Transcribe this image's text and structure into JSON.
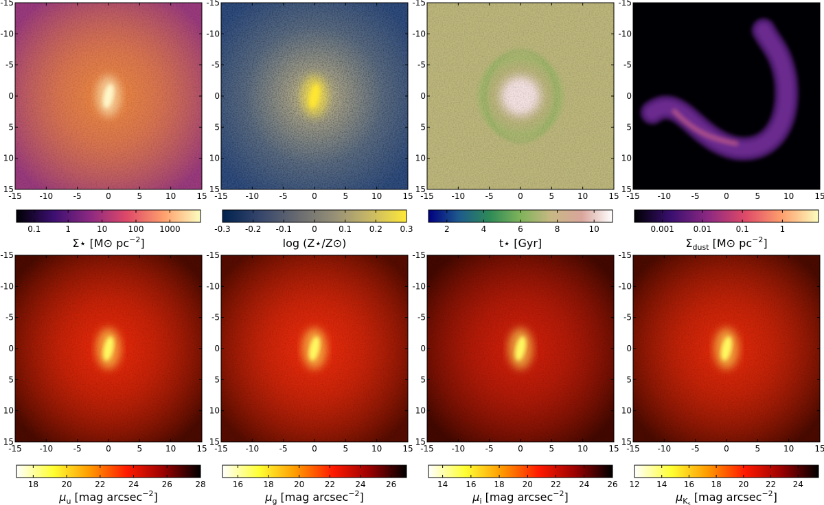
{
  "chart_data": [
    {
      "type": "heatmap",
      "panel": "stellar-surface-density",
      "x_ticks": [
        "-15",
        "-10",
        "-5",
        "0",
        "5",
        "10",
        "15"
      ],
      "y_ticks": [
        "-15",
        "-10",
        "-5",
        "0",
        "5",
        "10",
        "15"
      ],
      "xlim": [
        -15,
        15
      ],
      "ylim": [
        -15,
        15
      ],
      "y_inverted": true,
      "colormap": "inferno",
      "colors": [
        "#000004",
        "#3b0f70",
        "#8c2981",
        "#de4968",
        "#fe9f6d",
        "#fcfdbf"
      ],
      "colorbar": {
        "scale": "log",
        "min": 0.03,
        "max": 8000,
        "tick_values": [
          0.1,
          1,
          10,
          100,
          1000
        ],
        "tick_labels": [
          "0.1",
          "1",
          "10",
          "100",
          "1000"
        ]
      },
      "label": {
        "main": "Σ⋆ [M⊙ pc",
        "sup": "−2",
        "tail": "]"
      },
      "image": {
        "style": "core",
        "edge": "#9a3a7d",
        "mid": "#f08a3e",
        "center": "#fff6c8",
        "core_elongated": true
      }
    },
    {
      "type": "heatmap",
      "panel": "stellar-metallicity",
      "x_ticks": [
        "-15",
        "-10",
        "-5",
        "0",
        "5",
        "10",
        "15"
      ],
      "y_ticks": [
        "-15",
        "-10",
        "-5",
        "0",
        "5",
        "10",
        "15"
      ],
      "xlim": [
        -15,
        15
      ],
      "ylim": [
        -15,
        15
      ],
      "y_inverted": true,
      "colormap": "cividis",
      "colors": [
        "#00224e",
        "#35456c",
        "#666970",
        "#948e77",
        "#c8b866",
        "#fee838"
      ],
      "colorbar": {
        "scale": "linear",
        "min": -0.3,
        "max": 0.3,
        "tick_values": [
          -0.3,
          -0.2,
          -0.1,
          0,
          0.1,
          0.2,
          0.3
        ],
        "tick_labels": [
          "-0.3",
          "-0.2",
          "-0.1",
          "0",
          "0.1",
          "0.2",
          "0.3"
        ]
      },
      "label": {
        "main": "log (Z⋆/Z⊙)",
        "sup": "",
        "tail": ""
      },
      "image": {
        "style": "noisy",
        "edge": "#2f4d80",
        "mid": "#9c9a88",
        "center": "#ffe630",
        "core_elongated": true
      }
    },
    {
      "type": "heatmap",
      "panel": "stellar-age",
      "x_ticks": [
        "-15",
        "-10",
        "-5",
        "0",
        "5",
        "10",
        "15"
      ],
      "y_ticks": [
        "-15",
        "-10",
        "-5",
        "0",
        "5",
        "10",
        "15"
      ],
      "xlim": [
        -15,
        15
      ],
      "ylim": [
        -15,
        15
      ],
      "y_inverted": true,
      "colormap": "gist_earth",
      "colors": [
        "#000080",
        "#1e5a8c",
        "#2e8b57",
        "#7fb35a",
        "#c8b884",
        "#d9a59c",
        "#ffffff"
      ],
      "colorbar": {
        "scale": "linear",
        "min": 1,
        "max": 11,
        "tick_values": [
          2,
          4,
          6,
          8,
          10
        ],
        "tick_labels": [
          "2",
          "4",
          "6",
          "8",
          "10"
        ]
      },
      "label": {
        "main": "t⋆ [Gyr]",
        "sup": "",
        "tail": ""
      },
      "image": {
        "style": "age",
        "edge": "#bdb77c",
        "mid": "#a8b870",
        "center": "#f4e2e2",
        "core_elongated": false
      }
    },
    {
      "type": "heatmap",
      "panel": "dust-surface-density",
      "x_ticks": [
        "-15",
        "-10",
        "-5",
        "0",
        "5",
        "10",
        "15"
      ],
      "y_ticks": [
        "-15",
        "-10",
        "-5",
        "0",
        "5",
        "10",
        "15"
      ],
      "xlim": [
        -15,
        15
      ],
      "ylim": [
        -15,
        15
      ],
      "y_inverted": true,
      "colormap": "inferno",
      "colors": [
        "#000004",
        "#3b0f70",
        "#8c2981",
        "#de4968",
        "#fe9f6d",
        "#fcfdbf"
      ],
      "colorbar": {
        "scale": "log",
        "min": 0.0002,
        "max": 8,
        "tick_values": [
          0.001,
          0.01,
          0.1,
          1
        ],
        "tick_labels": [
          "0.001",
          "0.01",
          "0.1",
          "1"
        ]
      },
      "label": {
        "main": "Σ",
        "sub": "dust",
        "after_sub": " [M⊙ pc",
        "sup": "−2",
        "tail": "]"
      },
      "image": {
        "style": "dust",
        "edge": "#000004",
        "mid": "#6a2a8e",
        "center": "#c05a8a",
        "core_elongated": false
      }
    },
    {
      "type": "heatmap",
      "panel": "surface-brightness-u",
      "x_ticks": [
        "-15",
        "-10",
        "-5",
        "0",
        "5",
        "10",
        "15"
      ],
      "y_ticks": [
        "-15",
        "-10",
        "-5",
        "0",
        "5",
        "10",
        "15"
      ],
      "xlim": [
        -15,
        15
      ],
      "ylim": [
        -15,
        15
      ],
      "y_inverted": true,
      "colormap": "hot_r",
      "colors": [
        "#ffffff",
        "#ffff33",
        "#ff9900",
        "#ff1a00",
        "#990000",
        "#000000"
      ],
      "colorbar": {
        "scale": "linear",
        "min": 17,
        "max": 28,
        "tick_values": [
          18,
          20,
          22,
          24,
          26,
          28
        ],
        "tick_labels": [
          "18",
          "20",
          "22",
          "24",
          "26",
          "28"
        ]
      },
      "label": {
        "main": "μ",
        "sub": "u",
        "after_sub": " [mag arcsec",
        "sup": "−2",
        "tail": "]"
      },
      "image": {
        "style": "core",
        "edge": "#4a0a00",
        "mid": "#f02a0a",
        "center": "#fff860",
        "core_elongated": true
      }
    },
    {
      "type": "heatmap",
      "panel": "surface-brightness-g",
      "x_ticks": [
        "-15",
        "-10",
        "-5",
        "0",
        "5",
        "10",
        "15"
      ],
      "y_ticks": [
        "-15",
        "-10",
        "-5",
        "0",
        "5",
        "10",
        "15"
      ],
      "xlim": [
        -15,
        15
      ],
      "ylim": [
        -15,
        15
      ],
      "y_inverted": true,
      "colormap": "hot_r",
      "colors": [
        "#ffffff",
        "#ffff33",
        "#ff9900",
        "#ff1a00",
        "#990000",
        "#000000"
      ],
      "colorbar": {
        "scale": "linear",
        "min": 15,
        "max": 27,
        "tick_values": [
          16,
          18,
          20,
          22,
          24,
          26
        ],
        "tick_labels": [
          "16",
          "18",
          "20",
          "22",
          "24",
          "26"
        ]
      },
      "label": {
        "main": "μ",
        "sub": "g",
        "after_sub": " [mag arcsec",
        "sup": "−2",
        "tail": "]"
      },
      "image": {
        "style": "core",
        "edge": "#560c00",
        "mid": "#f22c0c",
        "center": "#fff860",
        "core_elongated": true
      }
    },
    {
      "type": "heatmap",
      "panel": "surface-brightness-i",
      "x_ticks": [
        "-15",
        "-10",
        "-5",
        "0",
        "5",
        "10",
        "15"
      ],
      "y_ticks": [
        "-15",
        "-10",
        "-5",
        "0",
        "5",
        "10",
        "15"
      ],
      "xlim": [
        -15,
        15
      ],
      "ylim": [
        -15,
        15
      ],
      "y_inverted": true,
      "colormap": "hot_r",
      "colors": [
        "#ffffff",
        "#ffff33",
        "#ff9900",
        "#ff1a00",
        "#990000",
        "#000000"
      ],
      "colorbar": {
        "scale": "linear",
        "min": 13,
        "max": 26,
        "tick_values": [
          14,
          16,
          18,
          20,
          22,
          24,
          26
        ],
        "tick_labels": [
          "14",
          "16",
          "18",
          "20",
          "22",
          "24",
          "26"
        ]
      },
      "label": {
        "main": "μ",
        "sub": "i",
        "after_sub": " [mag arcsec",
        "sup": "−2",
        "tail": "]"
      },
      "image": {
        "style": "core",
        "edge": "#420800",
        "mid": "#d8200a",
        "center": "#fff860",
        "core_elongated": true
      }
    },
    {
      "type": "heatmap",
      "panel": "surface-brightness-ks",
      "x_ticks": [
        "-15",
        "-10",
        "-5",
        "0",
        "5",
        "10",
        "15"
      ],
      "y_ticks": [
        "-15",
        "-10",
        "-5",
        "0",
        "5",
        "10",
        "15"
      ],
      "xlim": [
        -15,
        15
      ],
      "ylim": [
        -15,
        15
      ],
      "y_inverted": true,
      "colormap": "hot_r",
      "colors": [
        "#ffffff",
        "#ffff33",
        "#ff9900",
        "#ff1a00",
        "#990000",
        "#000000"
      ],
      "colorbar": {
        "scale": "linear",
        "min": 12,
        "max": 25.5,
        "tick_values": [
          12,
          14,
          16,
          18,
          20,
          22,
          24
        ],
        "tick_labels": [
          "12",
          "14",
          "16",
          "18",
          "20",
          "22",
          "24"
        ]
      },
      "label": {
        "main": "μ",
        "sub": "K",
        "subsub": "s",
        "after_sub": " [mag arcsec",
        "sup": "−2",
        "tail": "]"
      },
      "image": {
        "style": "core",
        "edge": "#4a0a00",
        "mid": "#ea2a0a",
        "center": "#fff860",
        "core_elongated": true
      }
    }
  ]
}
